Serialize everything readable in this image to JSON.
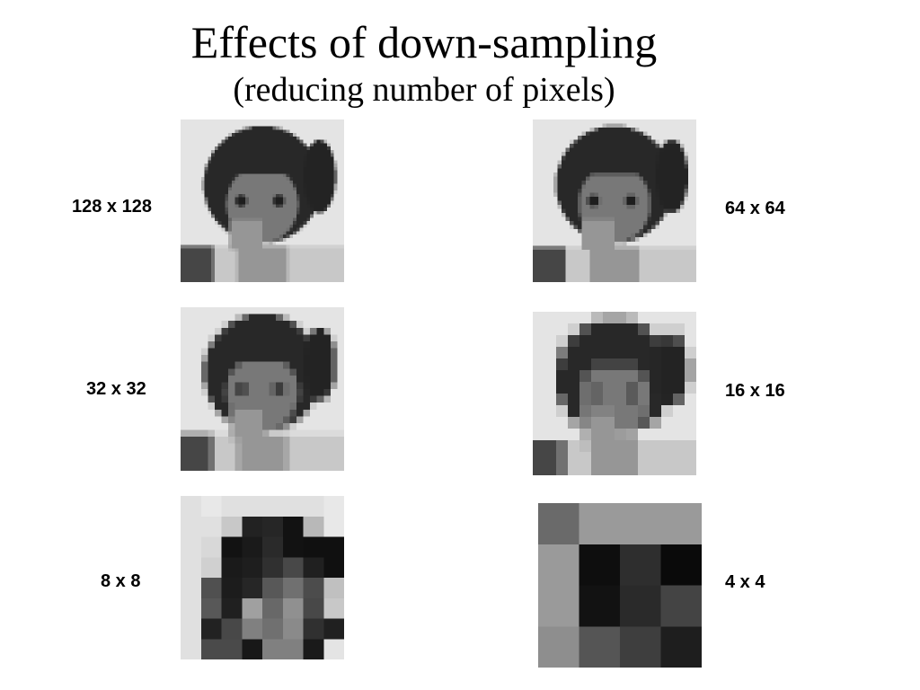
{
  "header": {
    "title": "Effects of down-sampling",
    "subtitle": "(reducing number of pixels)"
  },
  "panels": [
    {
      "label": "128 x 128"
    },
    {
      "label": "64 x 64"
    },
    {
      "label": "32 x 32"
    },
    {
      "label": "16 x 16"
    },
    {
      "label": "8 x 8"
    },
    {
      "label": "4 x 4"
    }
  ]
}
